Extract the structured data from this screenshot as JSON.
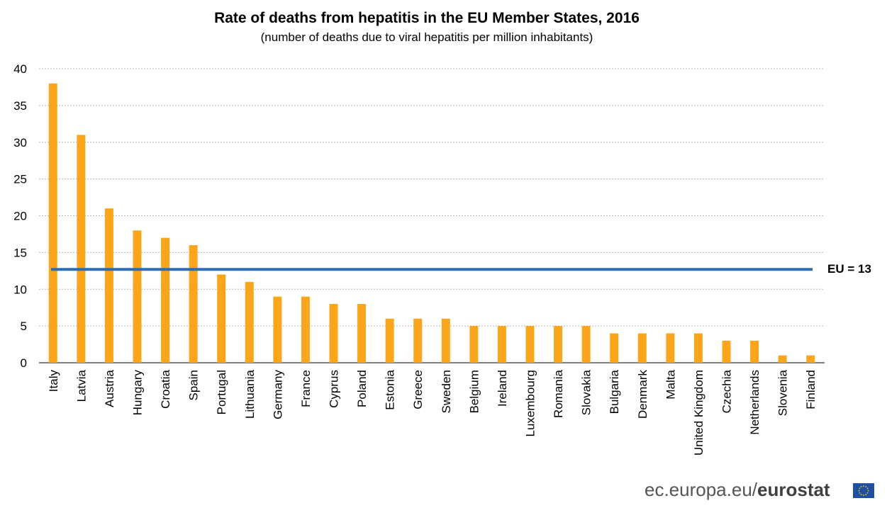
{
  "chart_data": {
    "type": "bar",
    "title": "Rate of deaths from hepatitis in the EU Member States, 2016",
    "subtitle": "(number of deaths due to viral hepatitis per million inhabitants)",
    "categories": [
      "Italy",
      "Latvia",
      "Austria",
      "Hungary",
      "Croatia",
      "Spain",
      "Portugal",
      "Lithuania",
      "Germany",
      "France",
      "Cyprus",
      "Poland",
      "Estonia",
      "Greece",
      "Sweden",
      "Belgium",
      "Ireland",
      "Luxembourg",
      "Romania",
      "Slovakia",
      "Bulgaria",
      "Denmark",
      "Malta",
      "United Kingdom",
      "Czechia",
      "Netherlands",
      "Slovenia",
      "Finland"
    ],
    "values": [
      38,
      31,
      21,
      18,
      17,
      16,
      12,
      11,
      9,
      9,
      8,
      8,
      6,
      6,
      6,
      5,
      5,
      5,
      5,
      5,
      4,
      4,
      4,
      4,
      3,
      3,
      1,
      1
    ],
    "ylim": [
      0,
      40
    ],
    "yticks": [
      0,
      5,
      10,
      15,
      20,
      25,
      30,
      35,
      40
    ],
    "grid": true,
    "reference_line": {
      "value": 12.7,
      "label": "EU = 13"
    },
    "colors": {
      "bar": "#F9A61C",
      "reference_line": "#2E6DB4",
      "grid": "#b3b3b3",
      "axis": "#000000"
    }
  },
  "footer": {
    "domain_text": "ec.europa.eu/",
    "brand_text": "eurostat"
  },
  "icons": {
    "flag": "eu-flag-icon"
  }
}
